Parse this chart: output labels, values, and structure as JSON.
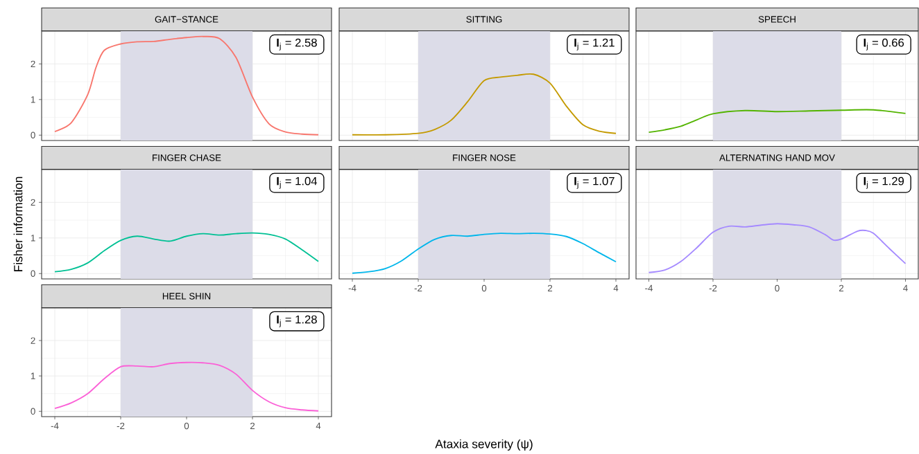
{
  "chart_data": [
    {
      "type": "line",
      "title": "GAIT−STANCE",
      "x": [
        -4,
        -3.5,
        -3,
        -2.75,
        -2.5,
        -2,
        -1.5,
        -1,
        -0.5,
        0,
        0.5,
        1,
        1.5,
        2,
        2.5,
        3,
        3.5,
        4
      ],
      "values": [
        0.1,
        0.35,
        1.14,
        1.9,
        2.38,
        2.56,
        2.62,
        2.63,
        2.69,
        2.74,
        2.77,
        2.71,
        2.18,
        1.07,
        0.32,
        0.09,
        0.03,
        0.01
      ],
      "color": "#f8766d",
      "xlim": [
        -4.4,
        4.4
      ],
      "ylim": [
        -0.15,
        2.92
      ],
      "xticks": [
        -4,
        -2,
        0,
        2,
        4
      ],
      "yticks": [
        0,
        1,
        2
      ],
      "grid": true,
      "tick_labels": "y",
      "bands": [
        {
          "axis": "x",
          "from": -2,
          "to": 2,
          "color": "#dcdce8"
        }
      ],
      "annotations": [
        "**I**$_{j}$ = 2.58"
      ]
    },
    {
      "type": "line",
      "title": "SITTING",
      "x": [
        -4,
        -3,
        -2,
        -1.5,
        -1,
        -0.5,
        0,
        0.5,
        1,
        1.5,
        2,
        2.5,
        3,
        3.5,
        4
      ],
      "values": [
        0.01,
        0.01,
        0.05,
        0.16,
        0.42,
        0.94,
        1.53,
        1.63,
        1.68,
        1.71,
        1.46,
        0.81,
        0.29,
        0.11,
        0.05
      ],
      "color": "#c49a00",
      "xlim": [
        -4.4,
        4.4
      ],
      "ylim": [
        -0.15,
        2.92
      ],
      "xticks": [
        -4,
        -2,
        0,
        2,
        4
      ],
      "yticks": [
        0,
        1,
        2
      ],
      "grid": true,
      "tick_labels": false,
      "bands": [
        {
          "axis": "x",
          "from": -2,
          "to": 2,
          "color": "#dcdce8"
        }
      ],
      "annotations": [
        "**I**$_{j}$ = 1.21"
      ]
    },
    {
      "type": "line",
      "title": "SPEECH",
      "x": [
        -4,
        -3.5,
        -3,
        -2.5,
        -2,
        -1,
        0,
        1,
        2,
        3,
        4
      ],
      "values": [
        0.08,
        0.15,
        0.25,
        0.43,
        0.6,
        0.69,
        0.66,
        0.68,
        0.7,
        0.71,
        0.61
      ],
      "color": "#53b400",
      "xlim": [
        -4.4,
        4.4
      ],
      "ylim": [
        -0.15,
        2.92
      ],
      "xticks": [
        -4,
        -2,
        0,
        2,
        4
      ],
      "yticks": [
        0,
        1,
        2
      ],
      "grid": true,
      "tick_labels": false,
      "bands": [
        {
          "axis": "x",
          "from": -2,
          "to": 2,
          "color": "#dcdce8"
        }
      ],
      "annotations": [
        "**I**$_{j}$ = 0.66"
      ]
    },
    {
      "type": "line",
      "title": "FINGER CHASE",
      "ylabel": "Fisher information",
      "x": [
        -4,
        -3.5,
        -3,
        -2.5,
        -2,
        -1.5,
        -1,
        -0.5,
        0,
        0.5,
        1,
        1.5,
        2,
        2.5,
        3,
        3.5,
        4
      ],
      "values": [
        0.05,
        0.12,
        0.3,
        0.64,
        0.93,
        1.05,
        0.97,
        0.91,
        1.05,
        1.12,
        1.08,
        1.12,
        1.14,
        1.1,
        0.97,
        0.67,
        0.34
      ],
      "color": "#00c094",
      "xlim": [
        -4.4,
        4.4
      ],
      "ylim": [
        -0.15,
        2.92
      ],
      "xticks": [
        -4,
        -2,
        0,
        2,
        4
      ],
      "yticks": [
        0,
        1,
        2
      ],
      "grid": true,
      "tick_labels": "y",
      "bands": [
        {
          "axis": "x",
          "from": -2,
          "to": 2,
          "color": "#dcdce8"
        }
      ],
      "annotations": [
        "**I**$_{j}$ = 1.04"
      ]
    },
    {
      "type": "line",
      "title": "FINGER NOSE",
      "xlabel": "Ataxia severity (ψ)",
      "x": [
        -4,
        -3.5,
        -3,
        -2.5,
        -2,
        -1.5,
        -1,
        -0.5,
        0,
        0.5,
        1,
        1.5,
        2,
        2.5,
        3,
        3.5,
        4
      ],
      "values": [
        0.01,
        0.05,
        0.14,
        0.36,
        0.69,
        0.96,
        1.07,
        1.05,
        1.1,
        1.13,
        1.12,
        1.13,
        1.11,
        1.04,
        0.84,
        0.58,
        0.33
      ],
      "color": "#00b6eb",
      "xlim": [
        -4.4,
        4.4
      ],
      "ylim": [
        -0.15,
        2.92
      ],
      "xticks": [
        -4,
        -2,
        0,
        2,
        4
      ],
      "yticks": [
        0,
        1,
        2
      ],
      "grid": true,
      "tick_labels": "x",
      "bands": [
        {
          "axis": "x",
          "from": -2,
          "to": 2,
          "color": "#dcdce8"
        }
      ],
      "annotations": [
        "**I**$_{j}$ = 1.07"
      ]
    },
    {
      "type": "line",
      "title": "ALTERNATING HAND MOV",
      "x": [
        -4,
        -3.5,
        -3,
        -2.5,
        -2,
        -1.5,
        -1,
        -0.5,
        0,
        0.5,
        1,
        1.5,
        1.75,
        2,
        2.5,
        2.75,
        3,
        3.5,
        4
      ],
      "values": [
        0.03,
        0.1,
        0.34,
        0.73,
        1.16,
        1.33,
        1.31,
        1.36,
        1.4,
        1.37,
        1.31,
        1.09,
        0.94,
        0.97,
        1.19,
        1.21,
        1.13,
        0.7,
        0.28
      ],
      "color": "#a58aff",
      "xlim": [
        -4.4,
        4.4
      ],
      "ylim": [
        -0.15,
        2.92
      ],
      "xticks": [
        -4,
        -2,
        0,
        2,
        4
      ],
      "yticks": [
        0,
        1,
        2
      ],
      "grid": true,
      "tick_labels": "x",
      "bands": [
        {
          "axis": "x",
          "from": -2,
          "to": 2,
          "color": "#dcdce8"
        }
      ],
      "annotations": [
        "**I**$_{j}$ = 1.29"
      ]
    },
    {
      "type": "line",
      "title": "HEEL SHIN",
      "x": [
        -4,
        -3.5,
        -3,
        -2.5,
        -2,
        -1.5,
        -1,
        -0.5,
        0,
        0.5,
        1,
        1.5,
        2,
        2.5,
        3,
        3.5,
        4
      ],
      "values": [
        0.08,
        0.24,
        0.5,
        0.92,
        1.26,
        1.28,
        1.26,
        1.35,
        1.38,
        1.37,
        1.3,
        1.05,
        0.59,
        0.27,
        0.1,
        0.04,
        0.01
      ],
      "color": "#fb61d7",
      "xlim": [
        -4.4,
        4.4
      ],
      "ylim": [
        -0.15,
        2.92
      ],
      "xticks": [
        -4,
        -2,
        0,
        2,
        4
      ],
      "yticks": [
        0,
        1,
        2
      ],
      "grid": true,
      "bands": [
        {
          "axis": "x",
          "from": -2,
          "to": 2,
          "color": "#dcdce8"
        }
      ],
      "annotations": [
        "**I**$_{j}$ = 1.28"
      ]
    }
  ]
}
